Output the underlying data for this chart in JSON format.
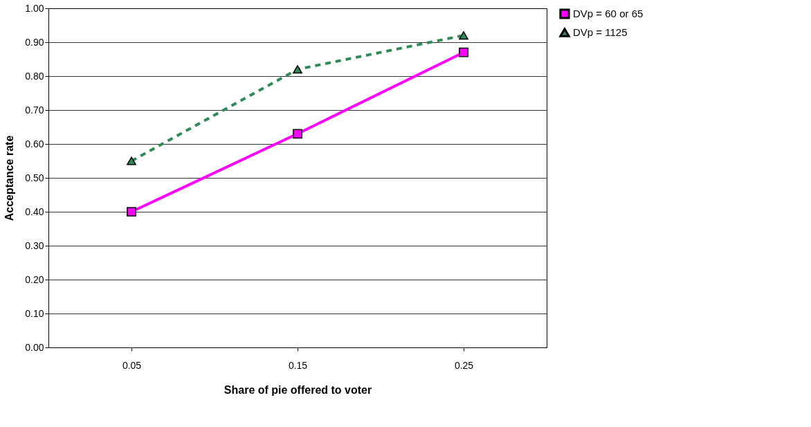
{
  "chart_data": {
    "type": "line",
    "xlabel": "Share of pie offered to voter",
    "ylabel": "Acceptance rate",
    "categories": [
      "0.05",
      "0.15",
      "0.25"
    ],
    "series": [
      {
        "name": "DVp = 60 or 65",
        "color": "#ff00ff",
        "values": [
          0.4,
          0.63,
          0.87
        ],
        "marker": "square",
        "line_style": "solid"
      },
      {
        "name": "DVp = 1125",
        "color": "#2e8b57",
        "values": [
          0.55,
          0.82,
          0.92
        ],
        "marker": "triangle",
        "line_style": "dashed"
      }
    ],
    "ylim": [
      0,
      1
    ],
    "yticks": [
      {
        "value": 0,
        "label": "0.00"
      },
      {
        "value": 0.1,
        "label": "0.10"
      },
      {
        "value": 0.2,
        "label": "0.20"
      },
      {
        "value": 0.3,
        "label": "0.30"
      },
      {
        "value": 0.4,
        "label": "0.40"
      },
      {
        "value": 0.5,
        "label": "0.50"
      },
      {
        "value": 0.6,
        "label": "0.60"
      },
      {
        "value": 0.7,
        "label": "0.70"
      },
      {
        "value": 0.8,
        "label": "0.80"
      },
      {
        "value": 0.9,
        "label": "0.90"
      },
      {
        "value": 1.0,
        "label": "1.00"
      }
    ],
    "grid": "y",
    "legend": "right"
  }
}
